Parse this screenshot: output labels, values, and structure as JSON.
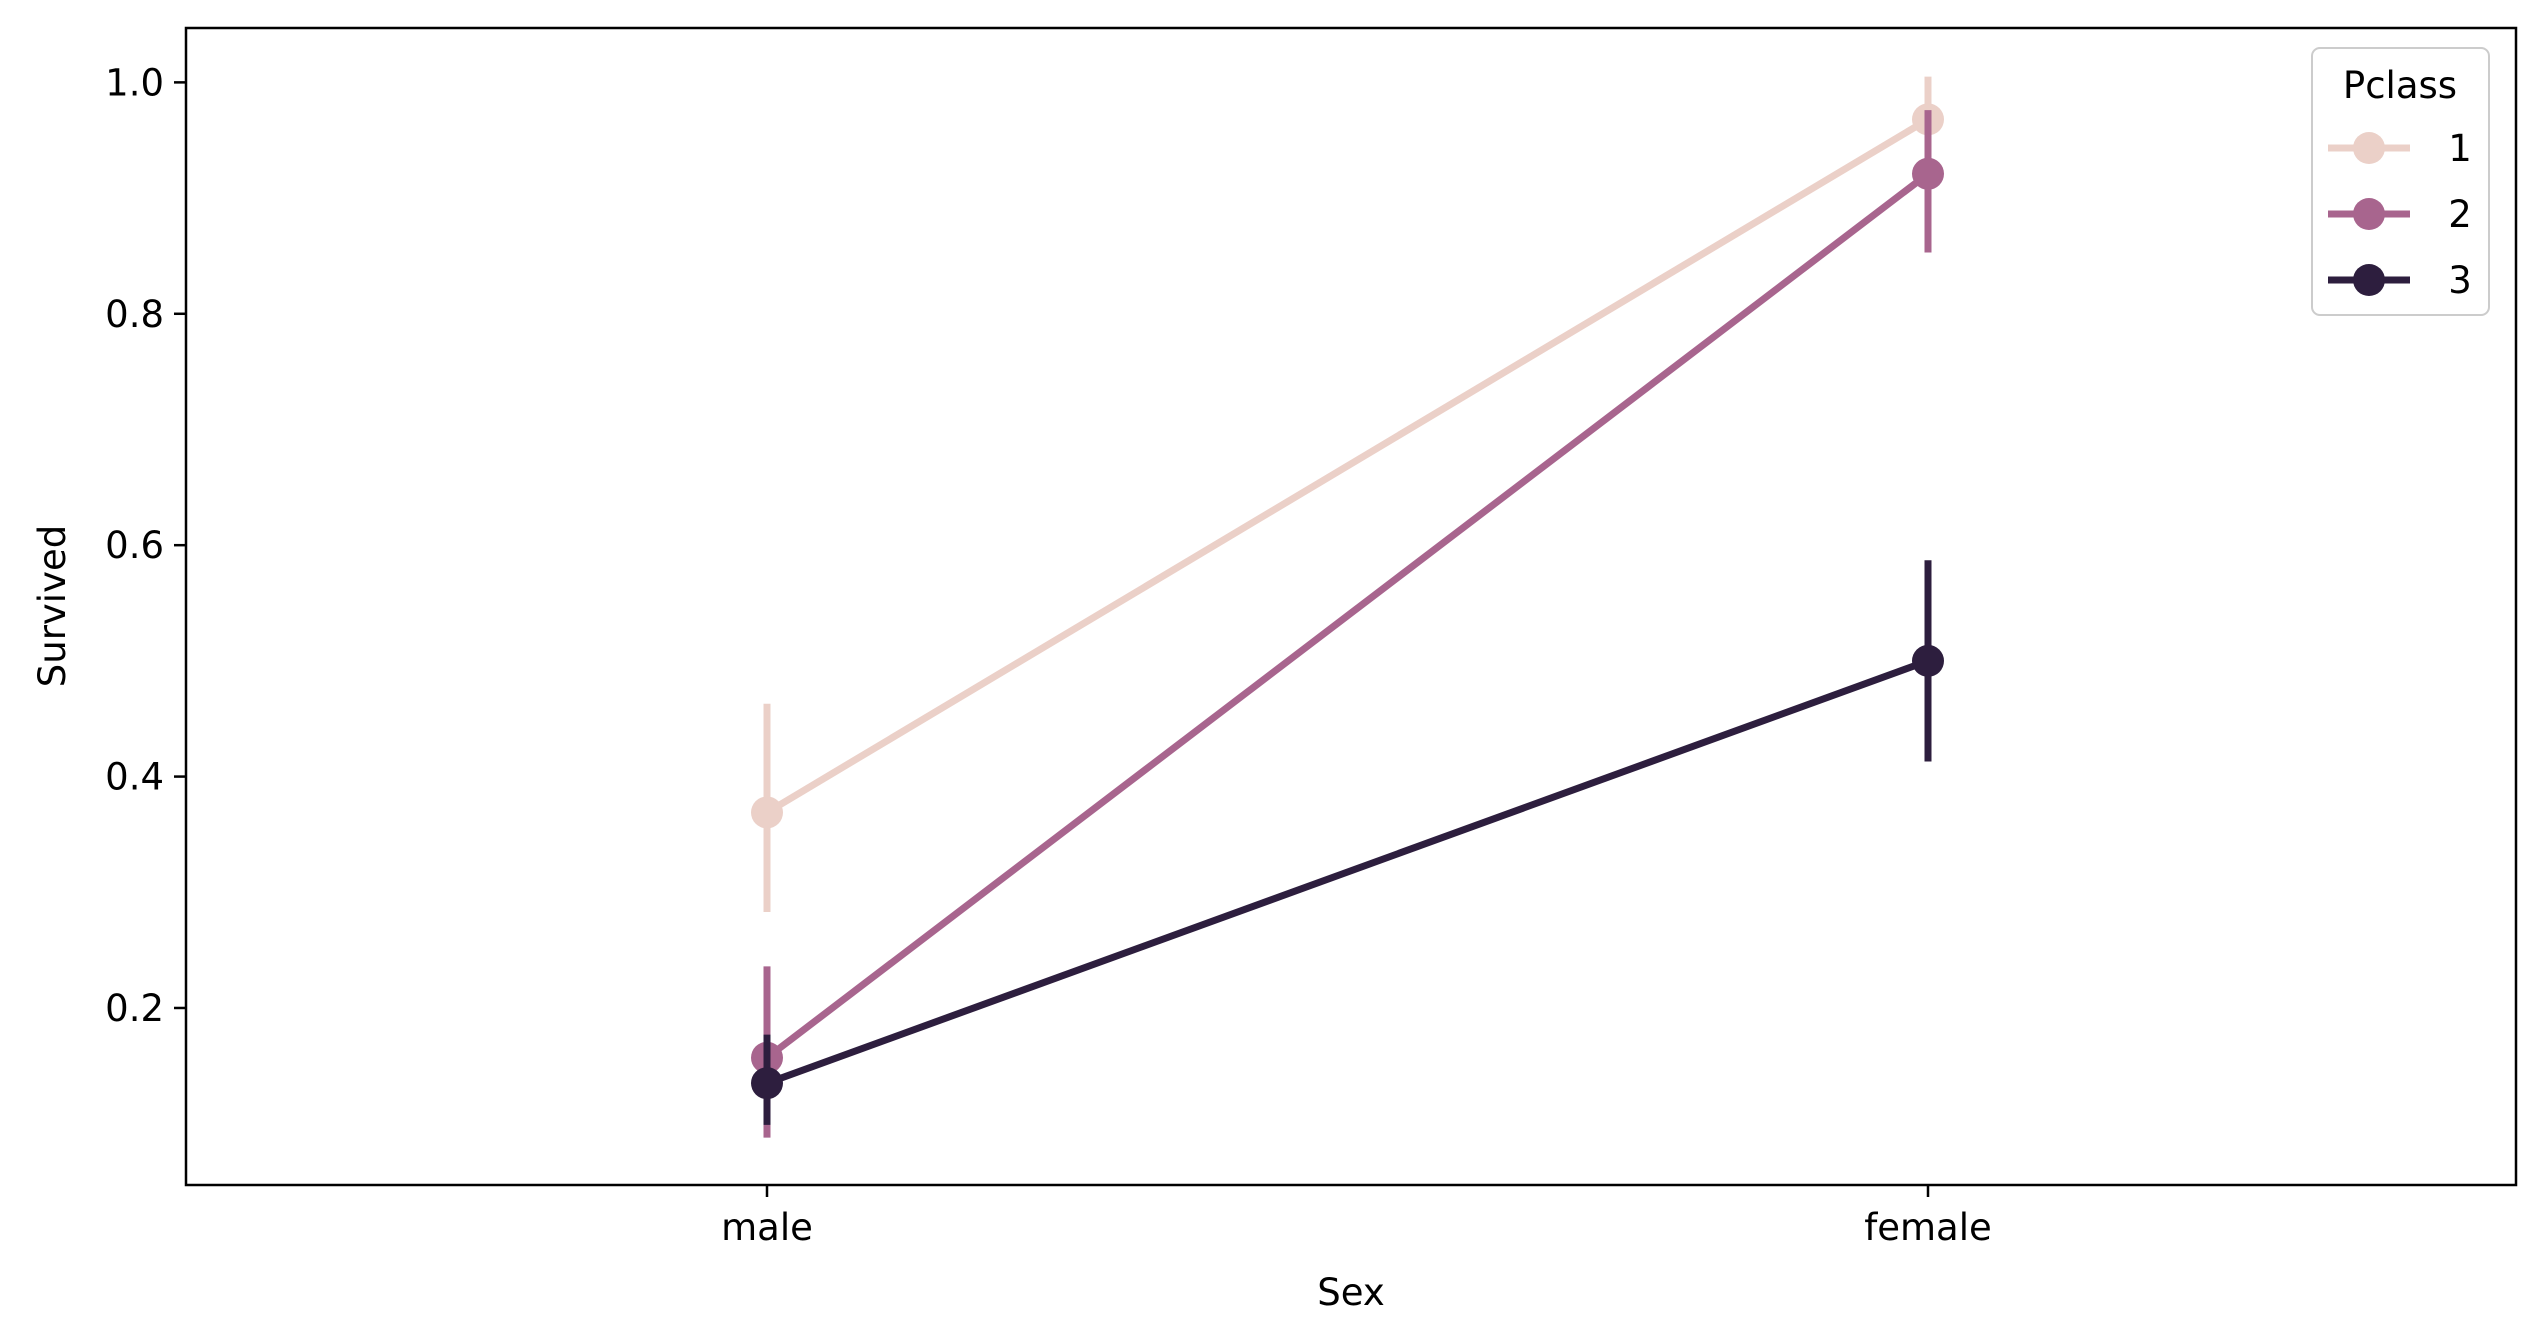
{
  "chart_data": {
    "type": "line",
    "title": "",
    "xlabel": "Sex",
    "ylabel": "Survived",
    "categories": [
      "male",
      "female"
    ],
    "ylim": [
      0.047,
      1.047
    ],
    "yticks": [
      "0.2",
      "0.4",
      "0.6",
      "0.8",
      "1.0"
    ],
    "grid": false,
    "legend": {
      "title": "Pclass",
      "placement": "top-right"
    },
    "series": [
      {
        "name": "1",
        "color": "#ebd0c8",
        "values": [
          0.369,
          0.968
        ],
        "ci_low": [
          0.283,
          0.935
        ],
        "ci_high": [
          0.463,
          1.005
        ]
      },
      {
        "name": "2",
        "color": "#a8658e",
        "values": [
          0.157,
          0.921
        ],
        "ci_low": [
          0.088,
          0.853
        ],
        "ci_high": [
          0.236,
          0.976
        ]
      },
      {
        "name": "3",
        "color": "#2d1e3e",
        "values": [
          0.135,
          0.5
        ],
        "ci_low": [
          0.099,
          0.413
        ],
        "ci_high": [
          0.177,
          0.587
        ]
      }
    ]
  }
}
